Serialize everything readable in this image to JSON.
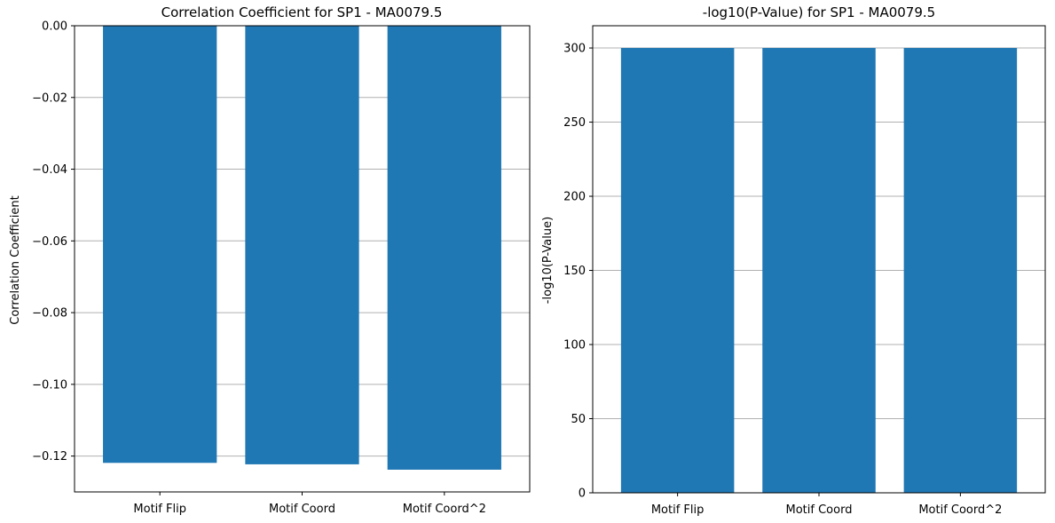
{
  "chart_data": [
    {
      "type": "bar",
      "title": "Correlation Coefficient for SP1 - MA0079.5",
      "xlabel": "",
      "ylabel": "Correlation Coefficient",
      "categories": [
        "Motif Flip",
        "Motif Coord",
        "Motif Coord^2"
      ],
      "values": [
        -0.1219,
        -0.1223,
        -0.1238
      ],
      "ylim": [
        -0.13,
        0.0
      ],
      "yticks": [
        0.0,
        -0.02,
        -0.04,
        -0.06,
        -0.08,
        -0.1,
        -0.12
      ],
      "ytick_labels": [
        "0.00",
        "−0.02",
        "−0.04",
        "−0.06",
        "−0.08",
        "−0.10",
        "−0.12"
      ],
      "grid": "y",
      "bar_color": "#1f77b4"
    },
    {
      "type": "bar",
      "title": "-log10(P-Value) for SP1 - MA0079.5",
      "xlabel": "",
      "ylabel": "-log10(P-Value)",
      "categories": [
        "Motif Flip",
        "Motif Coord",
        "Motif Coord^2"
      ],
      "values": [
        300,
        300,
        300
      ],
      "ylim": [
        0,
        315
      ],
      "yticks": [
        0,
        50,
        100,
        150,
        200,
        250,
        300
      ],
      "ytick_labels": [
        "0",
        "50",
        "100",
        "150",
        "200",
        "250",
        "300"
      ],
      "grid": "y",
      "bar_color": "#1f77b4"
    }
  ]
}
